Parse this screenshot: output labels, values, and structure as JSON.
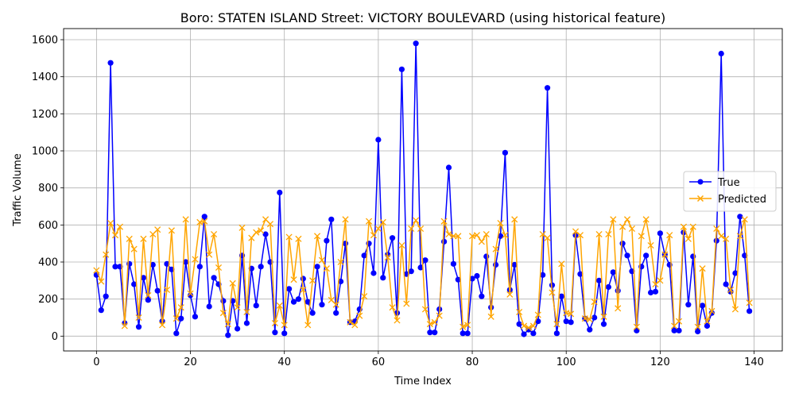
{
  "chart_data": {
    "type": "line",
    "title": "Boro: STATEN ISLAND Street: VICTORY BOULEVARD (using historical feature)",
    "xlabel": "Time Index",
    "ylabel": "Traffic Volume",
    "xlim": [
      -7,
      146
    ],
    "ylim": [
      -80,
      1660
    ],
    "xticks": [
      0,
      20,
      40,
      60,
      80,
      100,
      120,
      140
    ],
    "yticks": [
      0,
      200,
      400,
      600,
      800,
      1000,
      1200,
      1400,
      1600
    ],
    "grid": true,
    "legend_position": "center-right",
    "series": [
      {
        "name": "True",
        "color": "#0000ff",
        "marker": "circle",
        "values": [
          330,
          140,
          215,
          1475,
          375,
          375,
          70,
          390,
          280,
          50,
          315,
          195,
          385,
          245,
          80,
          390,
          360,
          15,
          95,
          400,
          220,
          105,
          375,
          645,
          160,
          315,
          280,
          190,
          5,
          190,
          40,
          435,
          70,
          365,
          165,
          375,
          550,
          400,
          20,
          775,
          15,
          255,
          185,
          200,
          310,
          185,
          125,
          375,
          170,
          515,
          630,
          125,
          295,
          500,
          75,
          80,
          145,
          435,
          500,
          340,
          1060,
          315,
          440,
          530,
          125,
          1440,
          335,
          350,
          1580,
          370,
          410,
          20,
          20,
          145,
          510,
          910,
          390,
          305,
          15,
          15,
          310,
          325,
          215,
          430,
          155,
          385,
          540,
          990,
          250,
          385,
          65,
          10,
          35,
          15,
          80,
          330,
          1340,
          275,
          15,
          215,
          80,
          75,
          545,
          335,
          95,
          35,
          100,
          300,
          65,
          265,
          345,
          245,
          500,
          435,
          350,
          30,
          375,
          435,
          235,
          240,
          555,
          440,
          385,
          30,
          30,
          560,
          170,
          430,
          25,
          165,
          55,
          125,
          515,
          1525,
          280,
          240,
          340,
          645,
          435,
          135
        ]
      },
      {
        "name": "Predicted",
        "color": "#ffa500",
        "marker": "x",
        "values": [
          355,
          295,
          440,
          610,
          545,
          590,
          55,
          525,
          470,
          100,
          525,
          220,
          550,
          575,
          60,
          250,
          570,
          95,
          155,
          630,
          230,
          415,
          615,
          620,
          440,
          550,
          370,
          125,
          65,
          285,
          155,
          585,
          130,
          530,
          560,
          570,
          630,
          605,
          70,
          165,
          60,
          535,
          305,
          525,
          250,
          60,
          300,
          540,
          410,
          365,
          195,
          170,
          400,
          630,
          75,
          60,
          110,
          215,
          620,
          545,
          580,
          615,
          425,
          155,
          85,
          490,
          175,
          580,
          625,
          580,
          145,
          65,
          75,
          110,
          620,
          550,
          540,
          540,
          50,
          60,
          540,
          545,
          510,
          550,
          105,
          470,
          610,
          545,
          225,
          630,
          130,
          55,
          45,
          55,
          115,
          550,
          530,
          235,
          65,
          390,
          125,
          120,
          565,
          545,
          95,
          90,
          185,
          550,
          105,
          550,
          630,
          150,
          590,
          630,
          580,
          50,
          540,
          630,
          490,
          280,
          300,
          440,
          545,
          55,
          80,
          590,
          525,
          590,
          50,
          365,
          80,
          135,
          580,
          540,
          525,
          250,
          145,
          540,
          630,
          180
        ]
      }
    ]
  }
}
